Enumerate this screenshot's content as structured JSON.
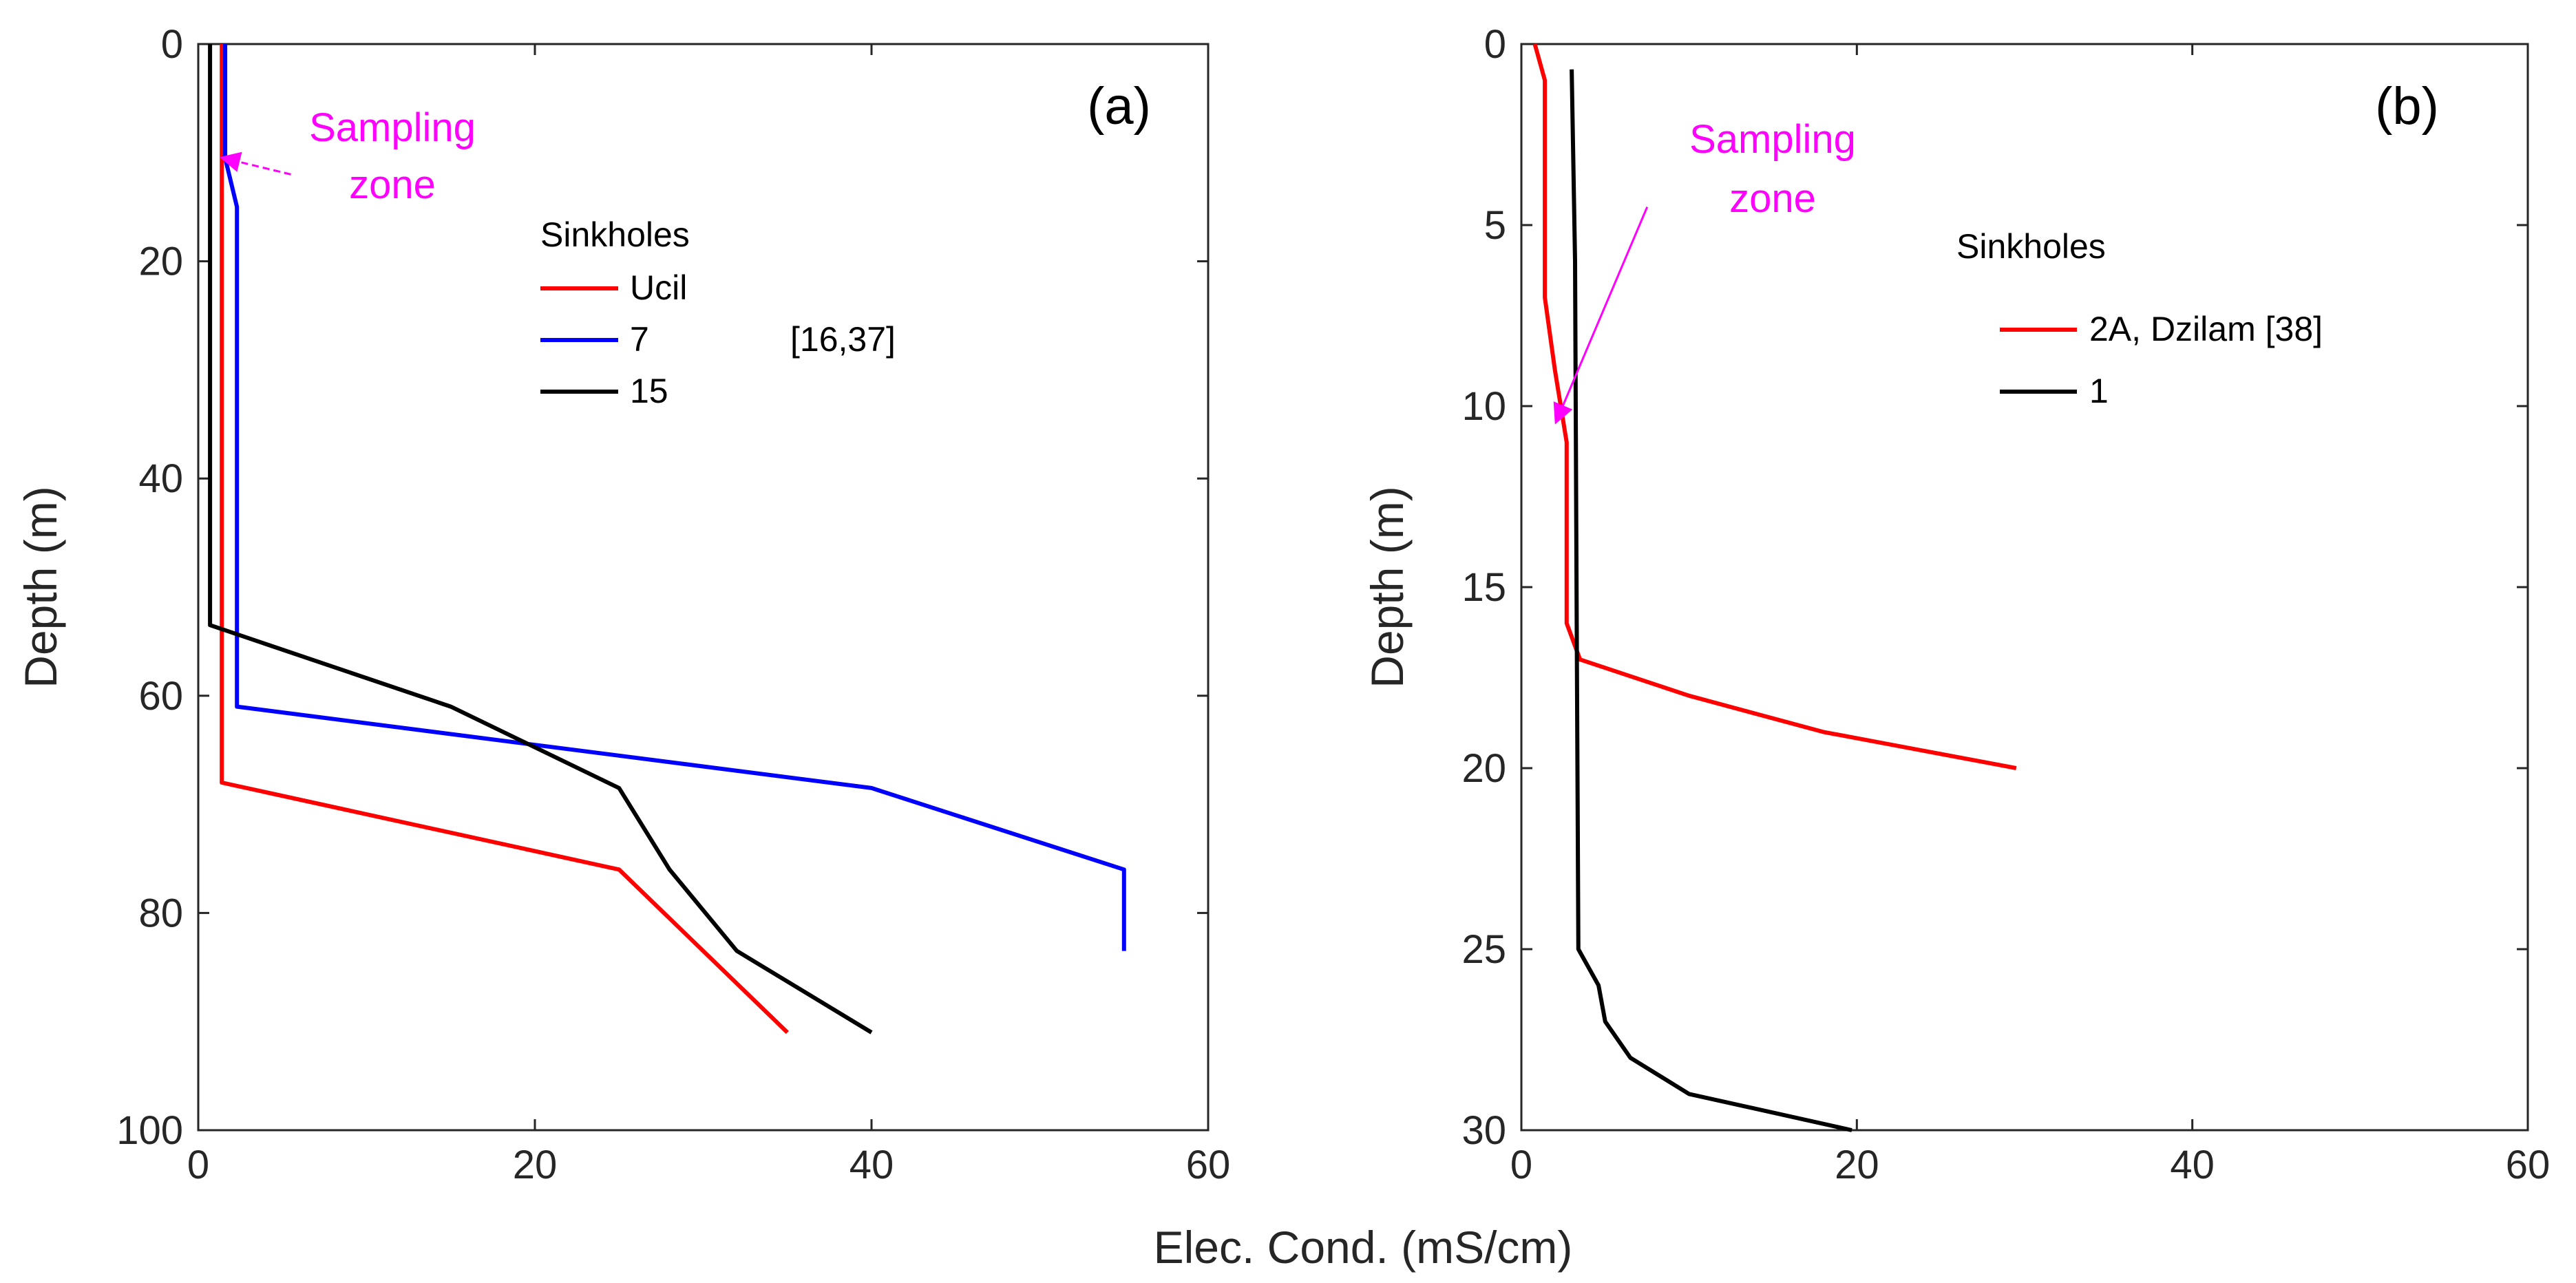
{
  "shared_xlabel": "Elec. Cond. (mS/cm)",
  "chart_data": [
    {
      "type": "line",
      "panel_label": "(a)",
      "xlabel": "",
      "ylabel": "Depth (m)",
      "xlim": [
        0,
        60
      ],
      "ylim": [
        0,
        100
      ],
      "y_reversed": true,
      "xticks": [
        0,
        20,
        40,
        60
      ],
      "yticks": [
        0,
        20,
        40,
        60,
        80,
        100
      ],
      "legend": {
        "title": "Sinkholes",
        "placement": "top-center",
        "reference": "[16,37]"
      },
      "series": [
        {
          "name": "Ucil",
          "color": "#ff0000",
          "points": [
            [
              1.4,
              0
            ],
            [
              1.4,
              68
            ],
            [
              25,
              76
            ],
            [
              35,
              91
            ]
          ]
        },
        {
          "name": "7",
          "color": "#0000ff",
          "points": [
            [
              1.6,
              0
            ],
            [
              1.6,
              10.5
            ],
            [
              2.3,
              15
            ],
            [
              2.3,
              61
            ],
            [
              40,
              68.5
            ],
            [
              55,
              76
            ],
            [
              55,
              83.5
            ]
          ]
        },
        {
          "name": "15",
          "color": "#000000",
          "points": [
            [
              0.7,
              0
            ],
            [
              0.7,
              53.5
            ],
            [
              15,
              61
            ],
            [
              25,
              68.5
            ],
            [
              28,
              76
            ],
            [
              32,
              83.5
            ],
            [
              40,
              91
            ]
          ]
        }
      ],
      "annotation": {
        "line1": "Sampling",
        "line2": "zone",
        "color": "#ff00ff",
        "arrow_to": [
          1.5,
          10.5
        ],
        "arrow_from": [
          5.5,
          12
        ],
        "arrow_style": "dashed"
      }
    },
    {
      "type": "line",
      "panel_label": "(b)",
      "xlabel": "",
      "ylabel": "Depth (m)",
      "xlim": [
        0,
        60
      ],
      "ylim": [
        0,
        30
      ],
      "y_reversed": true,
      "xticks": [
        0,
        20,
        40,
        60
      ],
      "yticks": [
        0,
        5,
        10,
        15,
        20,
        25,
        30
      ],
      "legend": {
        "title": "Sinkholes",
        "placement": "top-right"
      },
      "series": [
        {
          "name": "2A, Dzilam [38]",
          "color": "#ff0000",
          "points": [
            [
              0.8,
              0
            ],
            [
              1.4,
              1
            ],
            [
              1.4,
              7
            ],
            [
              2,
              9
            ],
            [
              2.7,
              11
            ],
            [
              2.7,
              16
            ],
            [
              3.5,
              17
            ],
            [
              10,
              18
            ],
            [
              18,
              19
            ],
            [
              29.5,
              20
            ]
          ]
        },
        {
          "name": "1",
          "color": "#000000",
          "points": [
            [
              3,
              0.7
            ],
            [
              3.2,
              6
            ],
            [
              3.3,
              16
            ],
            [
              3.4,
              25
            ],
            [
              4.6,
              26
            ],
            [
              5,
              27
            ],
            [
              6.5,
              28
            ],
            [
              10,
              29
            ],
            [
              19.7,
              30
            ]
          ]
        }
      ],
      "annotation": {
        "line1": "Sampling",
        "line2": "zone",
        "color": "#ff00ff",
        "arrow_to": [
          2.1,
          10.4
        ],
        "arrow_from": [
          7.5,
          4.5
        ],
        "arrow_style": "solid"
      }
    }
  ]
}
